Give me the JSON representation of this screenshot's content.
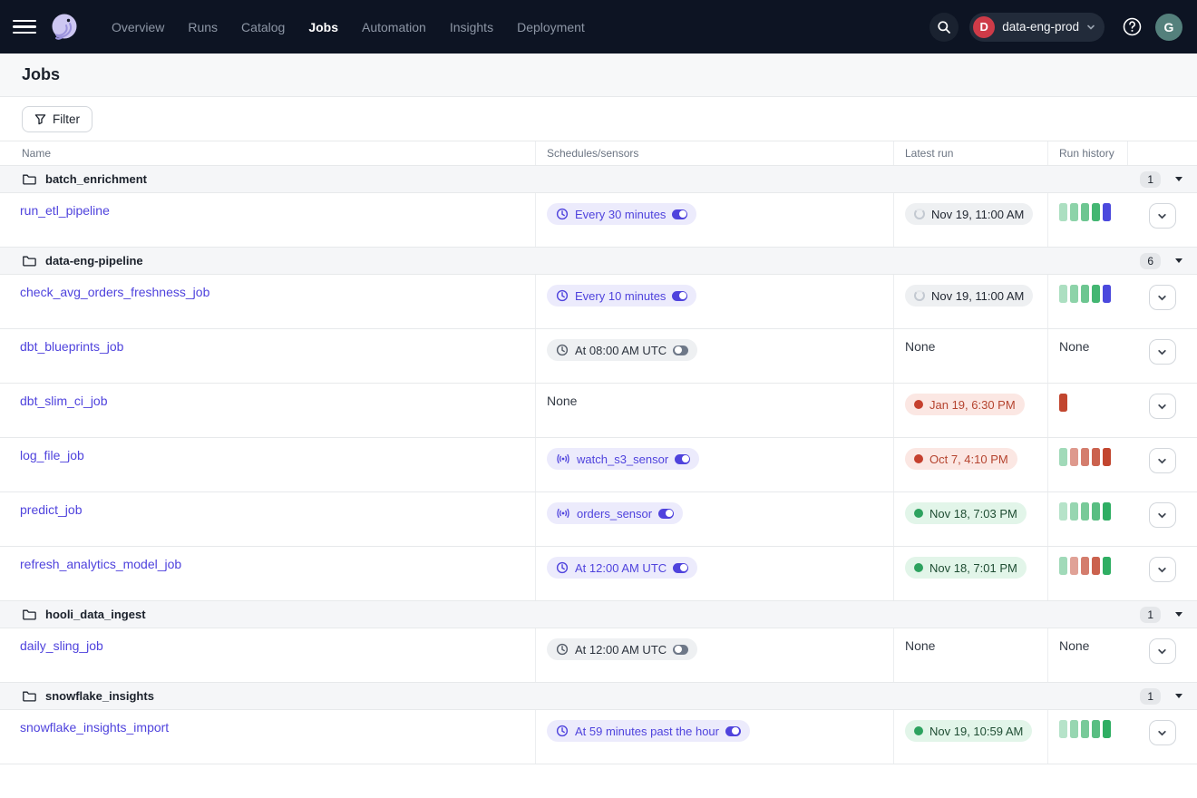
{
  "nav": {
    "items": [
      {
        "label": "Overview",
        "active": false
      },
      {
        "label": "Runs",
        "active": false
      },
      {
        "label": "Catalog",
        "active": false
      },
      {
        "label": "Jobs",
        "active": true
      },
      {
        "label": "Automation",
        "active": false
      },
      {
        "label": "Insights",
        "active": false
      },
      {
        "label": "Deployment",
        "active": false
      }
    ],
    "deployment": {
      "initial": "D",
      "name": "data-eng-prod"
    },
    "user_initial": "G"
  },
  "page": {
    "title": "Jobs"
  },
  "toolbar": {
    "filter_label": "Filter"
  },
  "table": {
    "columns": [
      "Name",
      "Schedules/sensors",
      "Latest run",
      "Run history"
    ],
    "none_label": "None",
    "groups": [
      {
        "name": "batch_enrichment",
        "count": "1",
        "jobs": [
          {
            "name": "run_etl_pipeline",
            "trigger": {
              "kind": "schedule",
              "label": "Every 30 minutes",
              "enabled": true
            },
            "latest_run": {
              "status": "in_progress",
              "label": "Nov 19, 11:00 AM"
            },
            "history": [
              "green:0.4",
              "green:0.55",
              "green:0.7",
              "green:0.9",
              "blue:1"
            ]
          }
        ]
      },
      {
        "name": "data-eng-pipeline",
        "count": "6",
        "jobs": [
          {
            "name": "check_avg_orders_freshness_job",
            "trigger": {
              "kind": "schedule",
              "label": "Every 10 minutes",
              "enabled": true
            },
            "latest_run": {
              "status": "in_progress",
              "label": "Nov 19, 11:00 AM"
            },
            "history": [
              "green:0.4",
              "green:0.55",
              "green:0.7",
              "green:0.9",
              "blue:1"
            ]
          },
          {
            "name": "dbt_blueprints_job",
            "trigger": {
              "kind": "schedule",
              "label": "At 08:00 AM UTC",
              "enabled": false
            },
            "latest_run": null,
            "history": null
          },
          {
            "name": "dbt_slim_ci_job",
            "trigger": null,
            "latest_run": {
              "status": "failure",
              "label": "Jan 19, 6:30 PM"
            },
            "history": [
              "red:1"
            ]
          },
          {
            "name": "log_file_job",
            "trigger": {
              "kind": "sensor",
              "label": "watch_s3_sensor",
              "enabled": true
            },
            "latest_run": {
              "status": "failure",
              "label": "Oct 7, 4:10 PM"
            },
            "history": [
              "green:0.45",
              "red:0.55",
              "red:0.7",
              "red:0.85",
              "red:1"
            ]
          },
          {
            "name": "predict_job",
            "trigger": {
              "kind": "sensor",
              "label": "orders_sensor",
              "enabled": true
            },
            "latest_run": {
              "status": "success",
              "label": "Nov 18, 7:03 PM"
            },
            "history": [
              "green:0.35",
              "green:0.5",
              "green:0.65",
              "green:0.8",
              "green:1"
            ]
          },
          {
            "name": "refresh_analytics_model_job",
            "trigger": {
              "kind": "schedule",
              "label": "At 12:00 AM UTC",
              "enabled": true
            },
            "latest_run": {
              "status": "success",
              "label": "Nov 18, 7:01 PM"
            },
            "history": [
              "green:0.45",
              "red:0.5",
              "red:0.7",
              "red:0.85",
              "green:1"
            ]
          }
        ]
      },
      {
        "name": "hooli_data_ingest",
        "count": "1",
        "jobs": [
          {
            "name": "daily_sling_job",
            "trigger": {
              "kind": "schedule",
              "label": "At 12:00 AM UTC",
              "enabled": false
            },
            "latest_run": null,
            "history": null
          }
        ]
      },
      {
        "name": "snowflake_insights",
        "count": "1",
        "jobs": [
          {
            "name": "snowflake_insights_import",
            "trigger": {
              "kind": "schedule",
              "label": "At 59 minutes past the hour",
              "enabled": true
            },
            "latest_run": {
              "status": "success",
              "label": "Nov 19, 10:59 AM"
            },
            "history": [
              "green:0.35",
              "green:0.5",
              "green:0.65",
              "green:0.8",
              "green:1"
            ]
          }
        ]
      }
    ]
  },
  "colors": {
    "accent": "#4f43dd",
    "success": "#2fae63",
    "failure": "#c2462f",
    "in_progress_bar": "#4b49dd",
    "navbar": "#0d1423"
  }
}
